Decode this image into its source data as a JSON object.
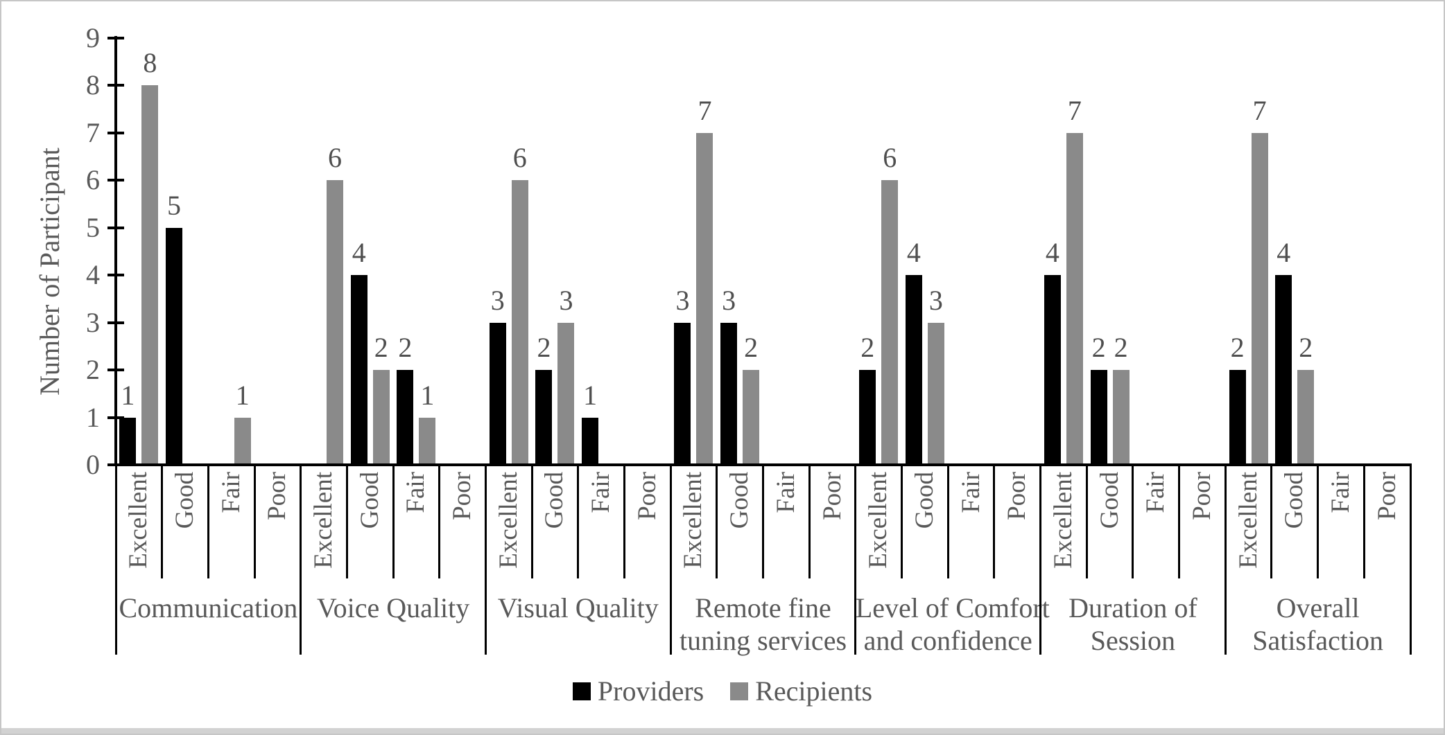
{
  "colors": {
    "providers_bar": "#000000",
    "recipients_bar": "#8a8a8a",
    "axis": "#000000",
    "text": "#595959",
    "frame_border": "#c6c6c6"
  },
  "chart_data": {
    "type": "bar",
    "title": "",
    "ylabel": "Number of Participant",
    "xlabel": "",
    "ylim": [
      0,
      9
    ],
    "yticks": [
      0,
      1,
      2,
      3,
      4,
      5,
      6,
      7,
      8,
      9
    ],
    "grid": false,
    "legend_position": "bottom-center",
    "sub_categories": [
      "Excellent",
      "Good",
      "Fair",
      "Poor"
    ],
    "series": [
      {
        "name": "Providers",
        "color": "#000000"
      },
      {
        "name": "Recipients",
        "color": "#8a8a8a"
      }
    ],
    "groups": [
      {
        "label": "Communication",
        "label_lines": [
          "Communication"
        ],
        "values": {
          "Providers": [
            1,
            5,
            0,
            0
          ],
          "Recipients": [
            8,
            0,
            1,
            0
          ]
        }
      },
      {
        "label": "Voice Quality",
        "label_lines": [
          "Voice Quality"
        ],
        "values": {
          "Providers": [
            0,
            4,
            2,
            0
          ],
          "Recipients": [
            6,
            2,
            1,
            0
          ]
        }
      },
      {
        "label": "Visual Quality",
        "label_lines": [
          "Visual Quality"
        ],
        "values": {
          "Providers": [
            3,
            2,
            1,
            0
          ],
          "Recipients": [
            6,
            3,
            0,
            0
          ]
        }
      },
      {
        "label": "Remote fine tuning services",
        "label_lines": [
          "Remote fine",
          "tuning services"
        ],
        "values": {
          "Providers": [
            3,
            3,
            0,
            0
          ],
          "Recipients": [
            7,
            2,
            0,
            0
          ]
        }
      },
      {
        "label": "Level of Comfort and confidence",
        "label_lines": [
          "Level of Comfort",
          "and confidence"
        ],
        "values": {
          "Providers": [
            2,
            4,
            0,
            0
          ],
          "Recipients": [
            6,
            3,
            0,
            0
          ]
        }
      },
      {
        "label": "Duration of Session",
        "label_lines": [
          "Duration of",
          "Session"
        ],
        "values": {
          "Providers": [
            4,
            2,
            0,
            0
          ],
          "Recipients": [
            7,
            2,
            0,
            0
          ]
        }
      },
      {
        "label": "Overall Satisfaction",
        "label_lines": [
          "Overall",
          "Satisfaction"
        ],
        "values": {
          "Providers": [
            2,
            4,
            0,
            0
          ],
          "Recipients": [
            7,
            2,
            0,
            0
          ]
        }
      }
    ]
  }
}
